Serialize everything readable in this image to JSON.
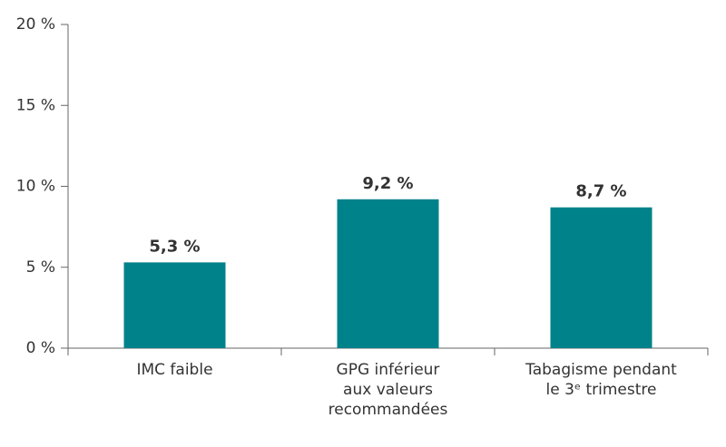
{
  "chart_data": {
    "type": "bar",
    "categories": [
      [
        "IMC faible"
      ],
      [
        "GPG inférieur",
        "aux valeurs",
        "recommandées"
      ],
      [
        "Tabagisme pendant",
        "le 3ᵉ trimestre"
      ]
    ],
    "values": [
      5.3,
      9.2,
      8.7
    ],
    "value_labels": [
      "5,3 %",
      "9,2 %",
      "8,7 %"
    ],
    "color": "#00828a",
    "ylim": [
      0,
      20
    ],
    "yticks": [
      {
        "value": 0,
        "label": "0 %"
      },
      {
        "value": 5,
        "label": "5 %"
      },
      {
        "value": 10,
        "label": "10 %"
      },
      {
        "value": 15,
        "label": "15 %"
      },
      {
        "value": 20,
        "label": "20 %"
      }
    ]
  }
}
